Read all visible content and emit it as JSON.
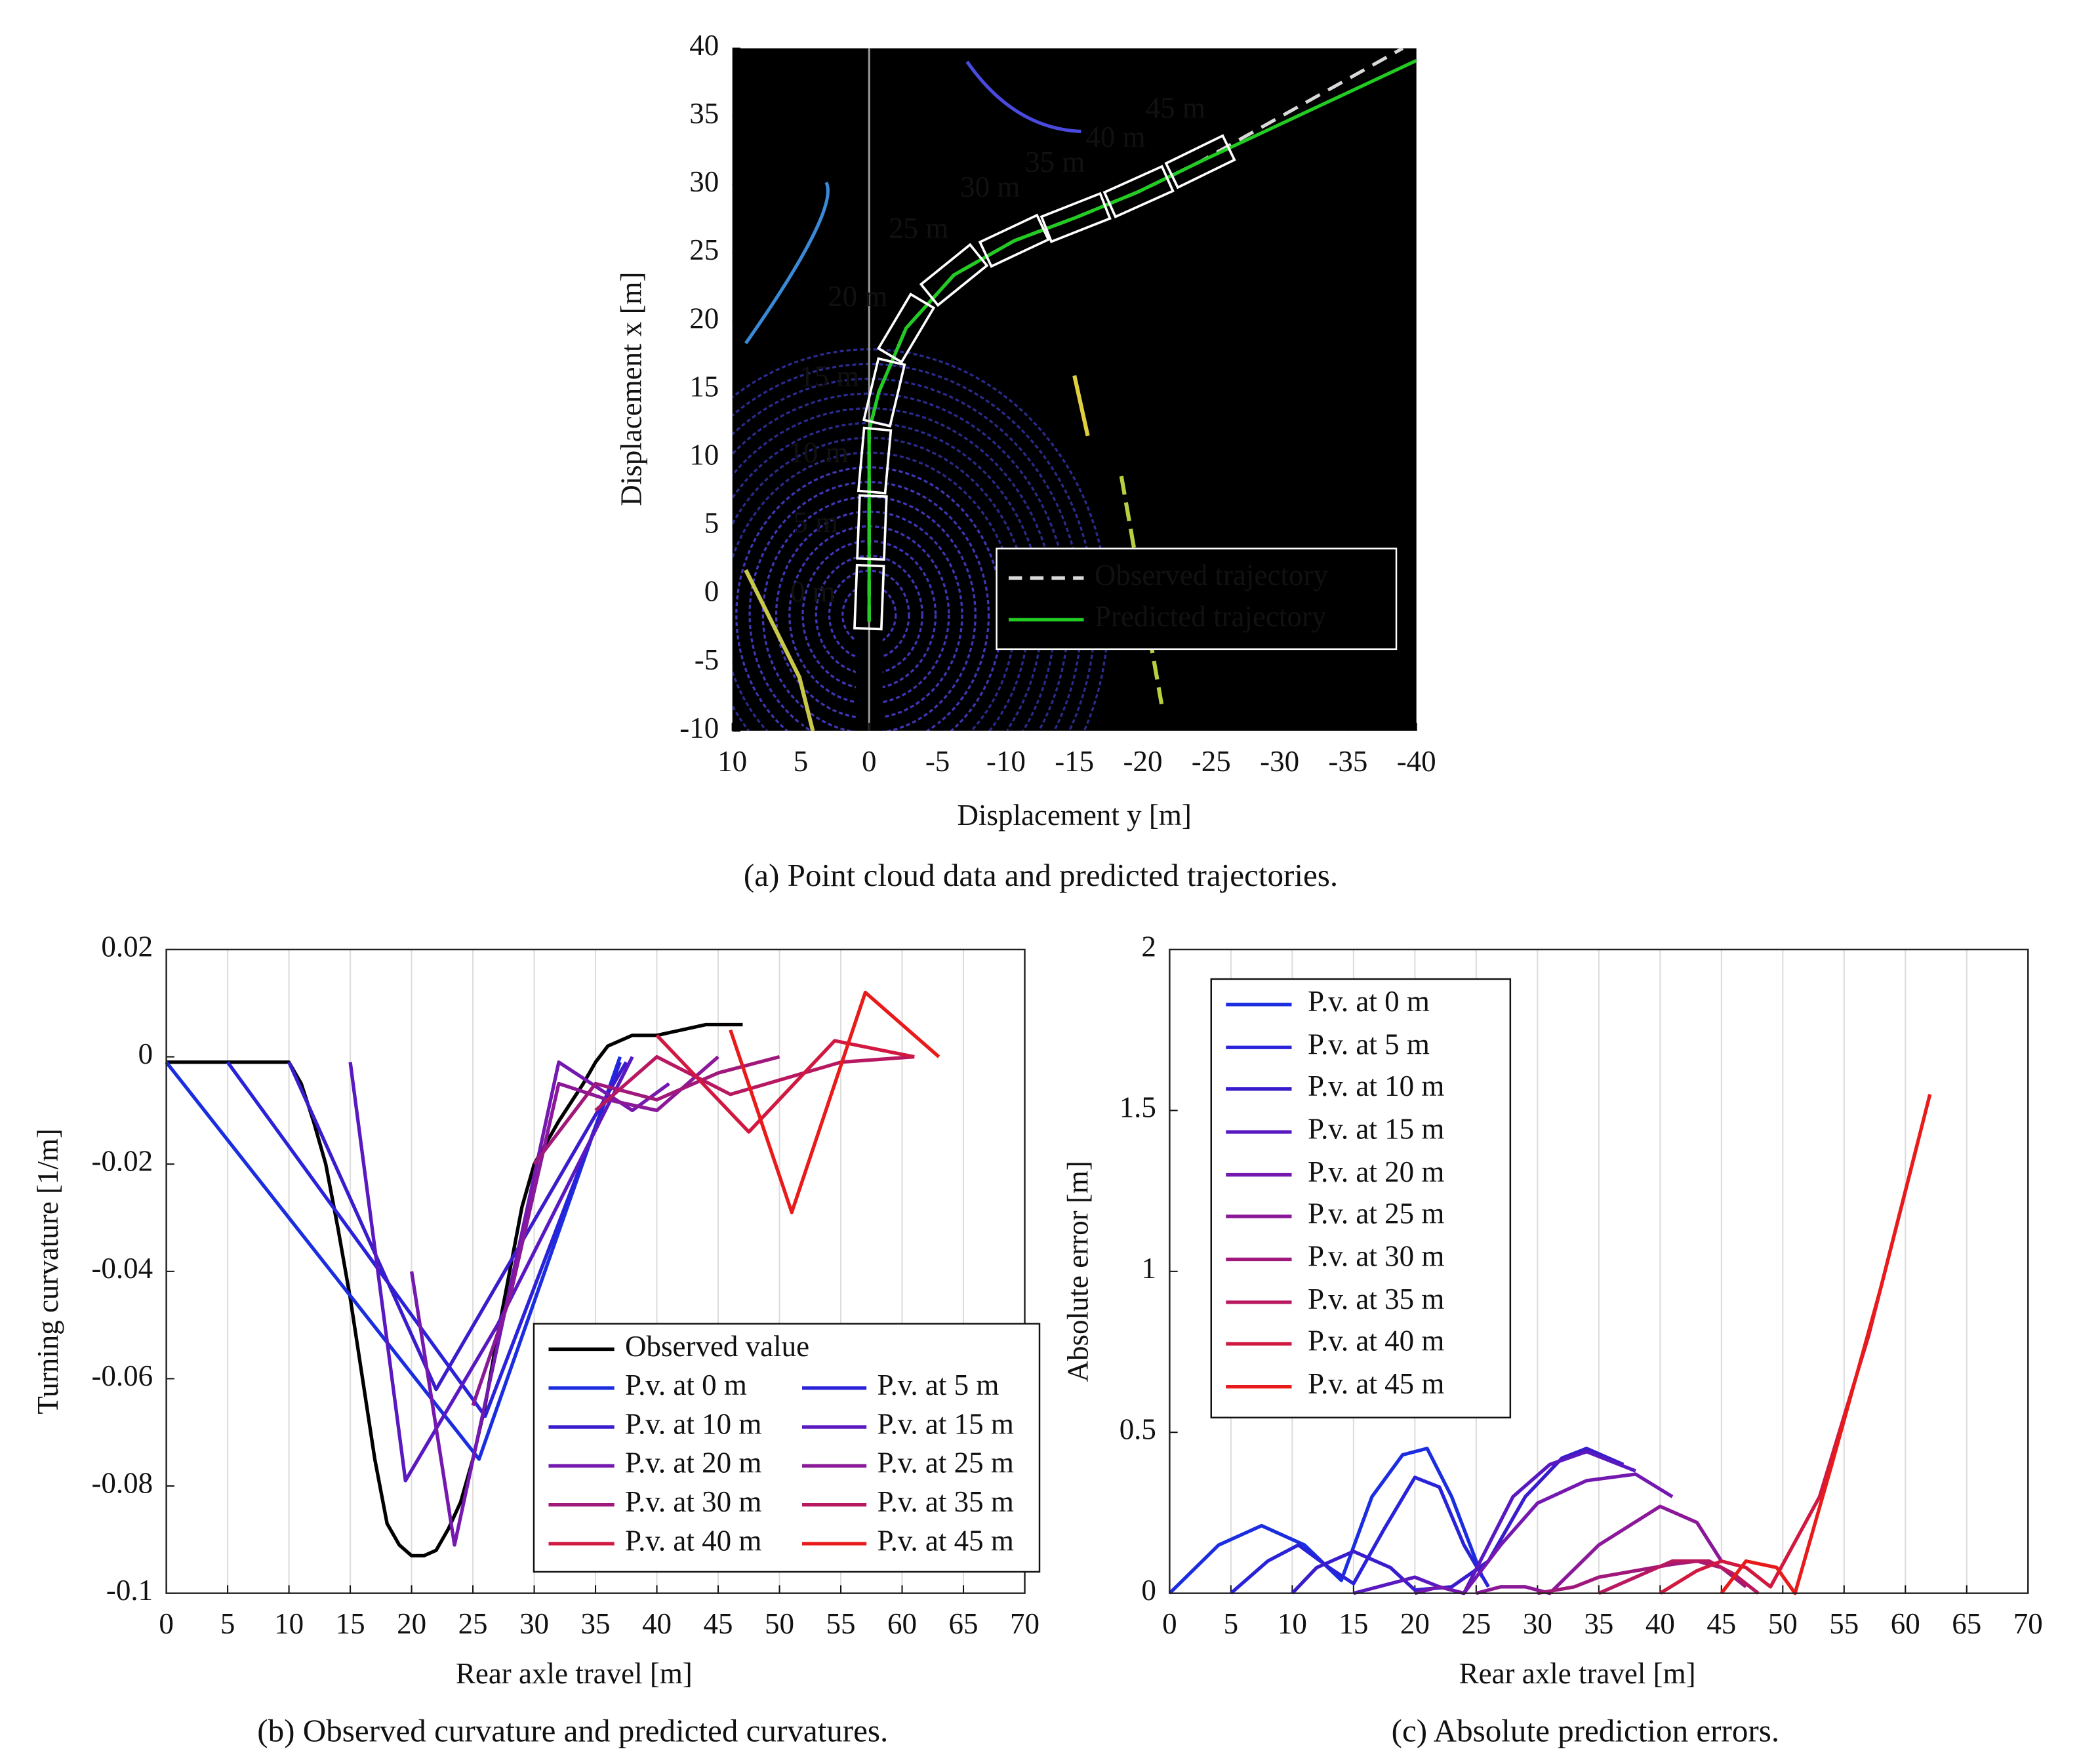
{
  "chart_data": [
    {
      "type": "line",
      "caption": "(a) Point cloud data and predicted trajectories.",
      "xlabel": "Displacement y [m]",
      "ylabel": "Displacement x [m]",
      "background": "#000000",
      "xlim": [
        10,
        -40
      ],
      "ylim": [
        -10,
        40
      ],
      "xticks": [
        10,
        5,
        0,
        -5,
        -10,
        -15,
        -20,
        -25,
        -30,
        -35,
        -40
      ],
      "yticks": [
        -10,
        -5,
        0,
        5,
        10,
        15,
        20,
        25,
        30,
        35,
        40
      ],
      "legend": "lower right",
      "series": [
        {
          "name": "Observed trajectory",
          "color": "#d9d9d9",
          "line_style": "dashed",
          "x": [
            0,
            0,
            -0.7,
            -2.7,
            -6.2,
            -10.6,
            -15.1,
            -19.7,
            -24.2,
            -39
          ],
          "values": [
            -2,
            12,
            14.8,
            19.5,
            23.4,
            25.9,
            27.6,
            29.5,
            31.7,
            40
          ]
        },
        {
          "name": "Predicted trajectory",
          "color": "#22cc22",
          "line_style": "solid",
          "x": [
            0,
            0,
            -0.7,
            -2.7,
            -6.2,
            -10.6,
            -15.1,
            -19.7,
            -24.2,
            -40
          ],
          "values": [
            -2,
            12,
            14.8,
            19.5,
            23.4,
            25.9,
            27.6,
            29.5,
            31.7,
            39.1
          ]
        }
      ],
      "annotations": [
        {
          "text": "0 m",
          "x": 0,
          "y": -0.2
        },
        {
          "text": "5 m",
          "x": -0.2,
          "y": 4.9
        },
        {
          "text": "10 m",
          "x": -0.4,
          "y": 9.8
        },
        {
          "text": "15 m",
          "x": -1.1,
          "y": 14.8
        },
        {
          "text": "20 m",
          "x": -2.7,
          "y": 19.5
        },
        {
          "text": "25 m",
          "x": -6.2,
          "y": 23.4
        },
        {
          "text": "30 m",
          "x": -10.6,
          "y": 25.9
        },
        {
          "text": "35 m",
          "x": -15.1,
          "y": 27.6
        },
        {
          "text": "40 m",
          "x": -19.7,
          "y": 29.5
        },
        {
          "text": "45 m",
          "x": -24.2,
          "y": 31.7
        }
      ]
    },
    {
      "type": "line",
      "caption": "(b) Observed curvature and predicted curvatures.",
      "xlabel": "Rear axle travel [m]",
      "ylabel": "Turning curvature [1/m]",
      "xlim": [
        0,
        70
      ],
      "ylim": [
        -0.1,
        0.02
      ],
      "xticks": [
        0,
        5,
        10,
        15,
        20,
        25,
        30,
        35,
        40,
        45,
        50,
        55,
        60,
        65,
        70
      ],
      "yticks": [
        -0.1,
        -0.08,
        -0.06,
        -0.04,
        -0.02,
        0,
        0.02
      ],
      "grid": "x",
      "legend": "lower right",
      "series": [
        {
          "name": "Observed value",
          "color": "#000000",
          "x": [
            0,
            10,
            11,
            12,
            13,
            14,
            15,
            16,
            17,
            18,
            19,
            20,
            21,
            22,
            23,
            24,
            25,
            26,
            27,
            28,
            29,
            30,
            32,
            34,
            35,
            36,
            38,
            40,
            42,
            44,
            47
          ],
          "values": [
            -0.001,
            -0.001,
            -0.005,
            -0.012,
            -0.02,
            -0.032,
            -0.045,
            -0.06,
            -0.075,
            -0.087,
            -0.091,
            -0.093,
            -0.093,
            -0.092,
            -0.088,
            -0.083,
            -0.075,
            -0.065,
            -0.052,
            -0.04,
            -0.028,
            -0.02,
            -0.012,
            -0.005,
            -0.001,
            0.002,
            0.004,
            0.004,
            0.005,
            0.006,
            0.006
          ]
        },
        {
          "name": "P.v. at 0 m",
          "color": "#1a2ee0",
          "x": [
            0,
            25.5,
            37
          ],
          "values": [
            -0.001,
            -0.075,
            0
          ]
        },
        {
          "name": "P.v. at 5 m",
          "color": "#2a22d8",
          "x": [
            5,
            26,
            37
          ],
          "values": [
            -0.001,
            -0.067,
            -0.001
          ]
        },
        {
          "name": "P.v. at 10 m",
          "color": "#3a1ccc",
          "x": [
            10,
            22,
            37.5
          ],
          "values": [
            -0.001,
            -0.062,
            -0.001
          ]
        },
        {
          "name": "P.v. at 15 m",
          "color": "#5a18c0",
          "x": [
            15,
            19.5,
            27,
            38
          ],
          "values": [
            -0.001,
            -0.079,
            -0.05,
            0
          ]
        },
        {
          "name": "P.v. at 20 m",
          "color": "#7418b0",
          "x": [
            20,
            23.5,
            32,
            38,
            41
          ],
          "values": [
            -0.04,
            -0.091,
            -0.001,
            -0.01,
            -0.005
          ]
        },
        {
          "name": "P.v. at 25 m",
          "color": "#8a1898",
          "x": [
            25,
            28,
            32,
            36,
            40,
            45
          ],
          "values": [
            -0.065,
            -0.045,
            -0.005,
            -0.008,
            -0.01,
            0
          ]
        },
        {
          "name": "P.v. at 30 m",
          "color": "#a0187a",
          "x": [
            30,
            35,
            40,
            45,
            50
          ],
          "values": [
            -0.02,
            -0.005,
            -0.008,
            -0.003,
            0
          ]
        },
        {
          "name": "P.v. at 35 m",
          "color": "#b81860",
          "x": [
            35,
            40,
            46,
            55,
            61
          ],
          "values": [
            -0.01,
            0,
            -0.007,
            -0.001,
            0
          ]
        },
        {
          "name": "P.v. at 40 m",
          "color": "#d01840",
          "x": [
            40,
            47.5,
            54.5,
            61
          ],
          "values": [
            0.004,
            -0.014,
            0.003,
            0
          ]
        },
        {
          "name": "P.v. at 45 m",
          "color": "#e81a1a",
          "x": [
            46,
            51,
            57,
            63
          ],
          "values": [
            0.005,
            -0.029,
            0.012,
            0
          ]
        }
      ]
    },
    {
      "type": "line",
      "caption": "(c) Absolute prediction errors.",
      "xlabel": "Rear axle travel [m]",
      "ylabel": "Absolute error [m]",
      "xlim": [
        0,
        70
      ],
      "ylim": [
        0,
        2
      ],
      "xticks": [
        0,
        5,
        10,
        15,
        20,
        25,
        30,
        35,
        40,
        45,
        50,
        55,
        60,
        65,
        70
      ],
      "yticks": [
        0,
        0.5,
        1,
        1.5,
        2
      ],
      "grid": "x",
      "legend": "upper left",
      "series": [
        {
          "name": "P.v. at 0 m",
          "color": "#1a2ee0",
          "x": [
            0,
            4,
            7.5,
            11,
            14,
            16.5,
            19,
            21,
            23,
            25.5
          ],
          "values": [
            0,
            0.15,
            0.21,
            0.15,
            0.04,
            0.3,
            0.43,
            0.45,
            0.3,
            0.05
          ]
        },
        {
          "name": "P.v. at 5 m",
          "color": "#2a22d8",
          "x": [
            5,
            8,
            10.5,
            13,
            15,
            17.5,
            20,
            22,
            24,
            26
          ],
          "values": [
            0,
            0.1,
            0.15,
            0.08,
            0.03,
            0.2,
            0.36,
            0.33,
            0.15,
            0.02
          ]
        },
        {
          "name": "P.v. at 10 m",
          "color": "#3a1ccc",
          "x": [
            10,
            12,
            15,
            18,
            20,
            23,
            26,
            29,
            32,
            34,
            37
          ],
          "values": [
            0,
            0.08,
            0.13,
            0.08,
            0.01,
            0.02,
            0.1,
            0.3,
            0.42,
            0.45,
            0.4
          ]
        },
        {
          "name": "P.v. at 15 m",
          "color": "#5a18c0",
          "x": [
            15,
            18,
            20,
            22,
            24,
            26,
            28,
            31,
            34,
            38
          ],
          "values": [
            0,
            0.03,
            0.05,
            0.02,
            0,
            0.15,
            0.3,
            0.4,
            0.44,
            0.38
          ]
        },
        {
          "name": "P.v. at 20 m",
          "color": "#7418b0",
          "x": [
            20,
            22,
            24,
            27,
            30,
            34,
            38,
            41
          ],
          "values": [
            0,
            0.02,
            0,
            0.15,
            0.28,
            0.35,
            0.37,
            0.3
          ]
        },
        {
          "name": "P.v. at 25 m",
          "color": "#8a1898",
          "x": [
            25,
            27,
            29,
            31,
            35,
            40,
            43,
            45
          ],
          "values": [
            0,
            0.02,
            0.02,
            0,
            0.15,
            0.27,
            0.22,
            0.1
          ]
        },
        {
          "name": "P.v. at 30 m",
          "color": "#a0187a",
          "x": [
            30,
            33,
            35,
            38,
            41,
            43,
            45,
            47
          ],
          "values": [
            0,
            0.02,
            0.05,
            0.07,
            0.09,
            0.1,
            0.08,
            0.02
          ]
        },
        {
          "name": "P.v. at 35 m",
          "color": "#b81860",
          "x": [
            35,
            38,
            41,
            44,
            46,
            48
          ],
          "values": [
            0,
            0.05,
            0.1,
            0.1,
            0.06,
            0
          ]
        },
        {
          "name": "P.v. at 40 m",
          "color": "#d01840",
          "x": [
            40,
            43,
            45,
            47,
            49,
            53,
            57,
            61
          ],
          "values": [
            0,
            0.07,
            0.1,
            0.08,
            0.02,
            0.3,
            0.8,
            1.4
          ]
        },
        {
          "name": "P.v. at 45 m",
          "color": "#e81a1a",
          "x": [
            45,
            47,
            49.5,
            51,
            54,
            58,
            62
          ],
          "values": [
            0,
            0.1,
            0.08,
            0,
            0.4,
            0.95,
            1.55
          ]
        }
      ]
    }
  ]
}
